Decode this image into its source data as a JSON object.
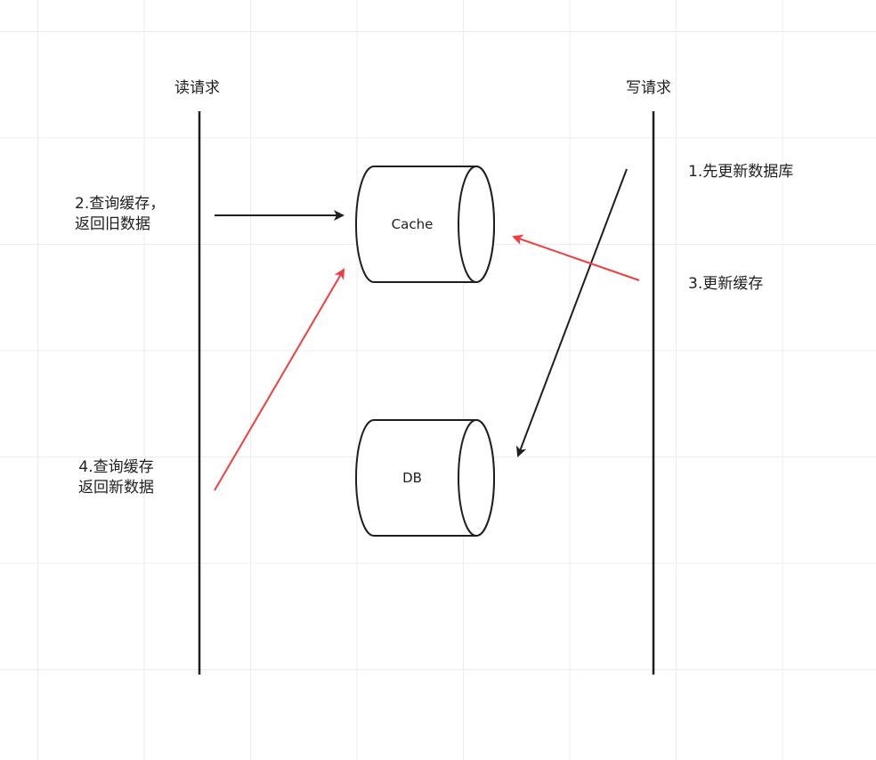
{
  "lanes": {
    "read": "读请求",
    "write": "写请求"
  },
  "nodes": {
    "cache": "Cache",
    "db": "DB"
  },
  "steps": {
    "step1": "1.先更新数据库",
    "step2_line1": "2.查询缓存，",
    "step2_line2": "返回旧数据",
    "step3": "3.更新缓存",
    "step4_line1": "4.查询缓存",
    "step4_line2": "返回新数据"
  },
  "colors": {
    "normal_arrow": "#1f1f1f",
    "highlight_arrow": "#f03e3e",
    "grid": "#ececec"
  }
}
